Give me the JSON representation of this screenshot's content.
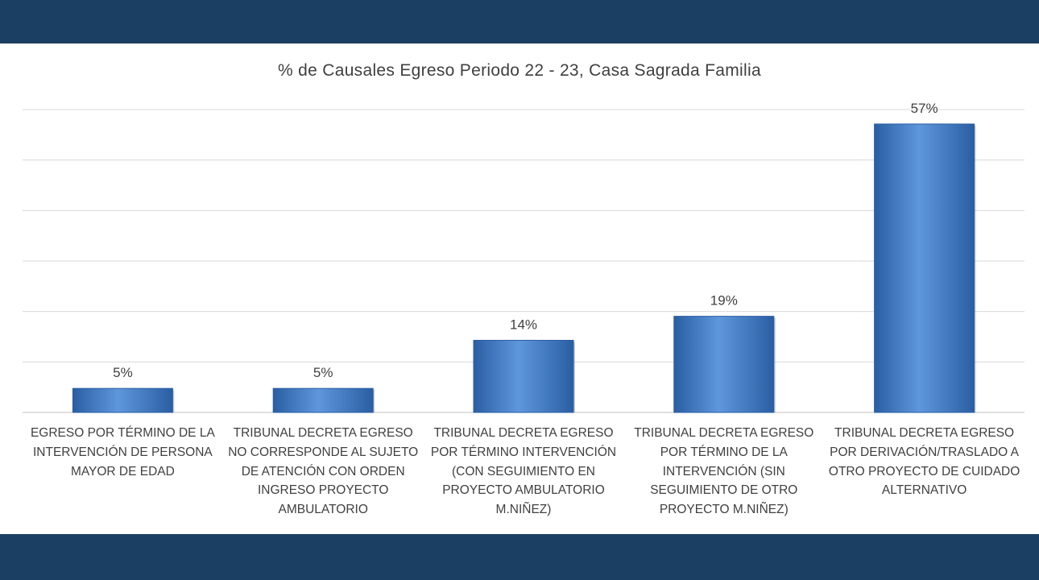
{
  "colors": {
    "band": "#1b3f63",
    "bar": "#3a78c9",
    "bar_light": "#5f97dc",
    "bar_dark": "#2a5ea3",
    "grid": "#d9d9d9",
    "text": "#404040"
  },
  "chart_data": {
    "type": "bar",
    "title": "% de Causales Egreso Periodo 22 - 23, Casa Sagrada Familia",
    "xlabel": "",
    "ylabel": "",
    "ylim": [
      0,
      60
    ],
    "grid": true,
    "legend": "none",
    "categories": [
      "EGRESO POR TÉRMINO DE LA INTERVENCIÓN DE PERSONA MAYOR DE EDAD",
      "TRIBUNAL DECRETA EGRESO NO CORRESPONDE AL SUJETO DE ATENCIÓN  CON ORDEN INGRESO PROYECTO AMBULATORIO",
      "TRIBUNAL DECRETA EGRESO POR TÉRMINO INTERVENCIÓN (CON SEGUIMIENTO EN PROYECTO AMBULATORIO M.NIÑEZ)",
      "TRIBUNAL DECRETA EGRESO POR TÉRMINO DE LA INTERVENCIÓN (SIN SEGUIMIENTO DE OTRO PROYECTO M.NIÑEZ)",
      "TRIBUNAL DECRETA EGRESO POR DERIVACIÓN/TRASLADO A OTRO PROYECTO DE CUIDADO ALTERNATIVO"
    ],
    "values": [
      4.76,
      4.76,
      14.29,
      19.05,
      57.14
    ],
    "data_labels": [
      "5%",
      "5%",
      "14%",
      "19%",
      "57%"
    ]
  }
}
